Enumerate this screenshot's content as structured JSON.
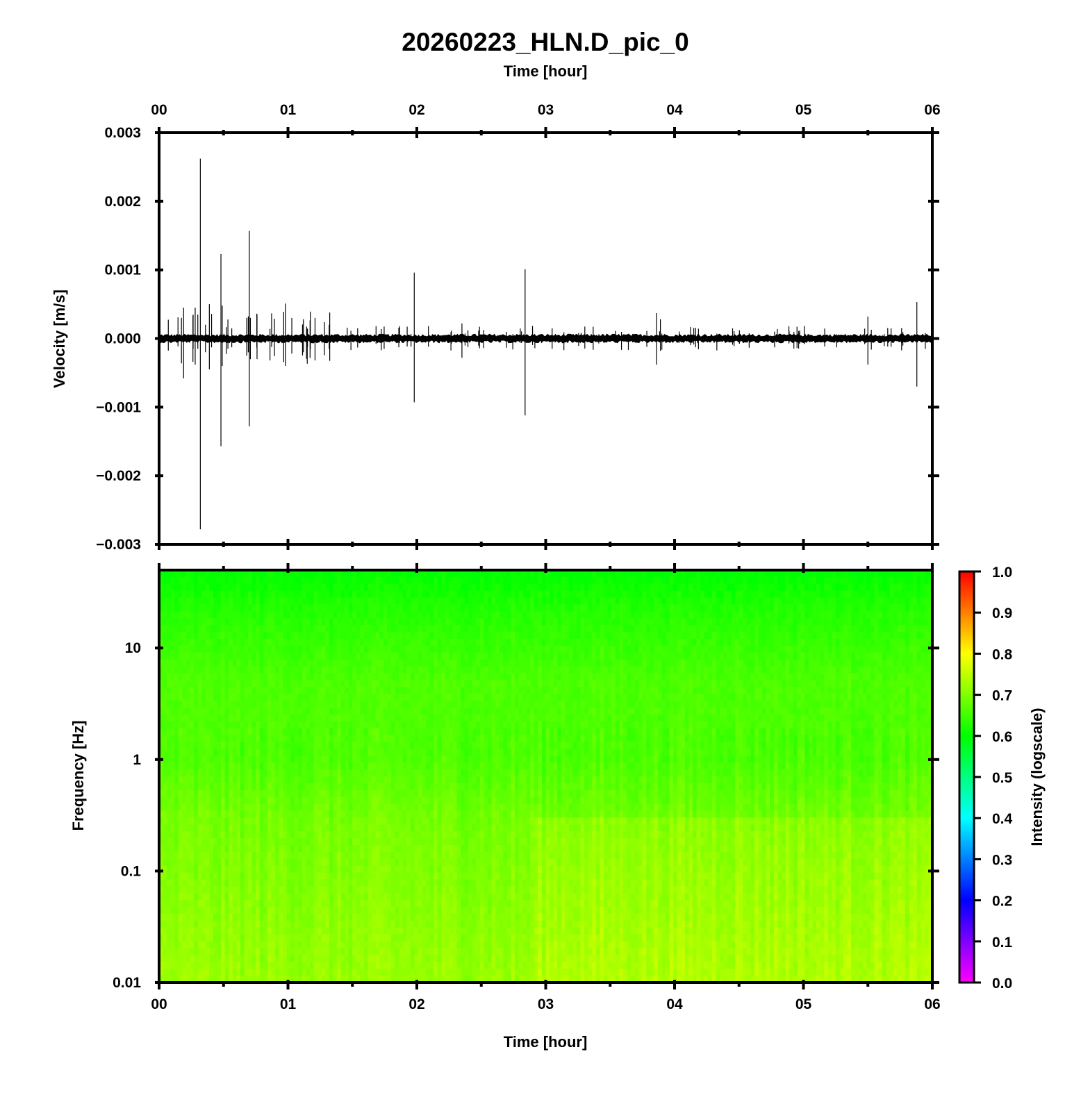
{
  "title": "20260223_HLN.D_pic_0",
  "chart_data": [
    {
      "type": "line",
      "name_panel": "waveform",
      "xlabel": "Time [hour]",
      "ylabel": "Velocity [m/s]",
      "xlim": [
        0,
        6
      ],
      "ylim": [
        -0.003,
        0.003
      ],
      "x_ticks": [
        "00",
        "01",
        "02",
        "03",
        "04",
        "05",
        "06"
      ],
      "y_ticks": [
        "0.003",
        "0.002",
        "0.001",
        "0.000",
        "−0.001",
        "−0.002",
        "−0.003"
      ],
      "noise_amplitude": 5e-05,
      "spikes": [
        {
          "t": 0.19,
          "hi": 0.00045,
          "lo": -0.00058
        },
        {
          "t": 0.28,
          "hi": 0.00045,
          "lo": -0.00038
        },
        {
          "t": 0.32,
          "hi": 0.00262,
          "lo": -0.00278
        },
        {
          "t": 0.36,
          "hi": 0.0002,
          "lo": -0.0002
        },
        {
          "t": 0.39,
          "hi": 0.0005,
          "lo": -0.00045
        },
        {
          "t": 0.48,
          "hi": 0.00123,
          "lo": -0.00157
        },
        {
          "t": 0.49,
          "hi": 0.00048,
          "lo": -0.0004
        },
        {
          "t": 0.68,
          "hi": 0.0003,
          "lo": -0.00025
        },
        {
          "t": 0.7,
          "hi": 0.00157,
          "lo": -0.00128
        },
        {
          "t": 0.76,
          "hi": 0.00035,
          "lo": -0.0003
        },
        {
          "t": 0.98,
          "hi": 0.00051,
          "lo": -0.0004
        },
        {
          "t": 1.03,
          "hi": 0.0003,
          "lo": -0.00022
        },
        {
          "t": 1.12,
          "hi": 0.00028,
          "lo": -0.0002
        },
        {
          "t": 1.21,
          "hi": 0.0003,
          "lo": -0.00032
        },
        {
          "t": 1.32,
          "hi": 0.0002,
          "lo": -0.00015
        },
        {
          "t": 1.98,
          "hi": 0.00096,
          "lo": -0.00093
        },
        {
          "t": 2.09,
          "hi": 0.00018,
          "lo": -0.00012
        },
        {
          "t": 2.35,
          "hi": 0.00022,
          "lo": -0.00028
        },
        {
          "t": 2.84,
          "hi": 0.00101,
          "lo": -0.00112
        },
        {
          "t": 3.05,
          "hi": 0.00015,
          "lo": -0.00015
        },
        {
          "t": 3.86,
          "hi": 0.00037,
          "lo": -0.00038
        },
        {
          "t": 3.89,
          "hi": 0.00028,
          "lo": -0.00018
        },
        {
          "t": 5.5,
          "hi": 0.00032,
          "lo": -0.00038
        },
        {
          "t": 5.68,
          "hi": 0.00015,
          "lo": -0.00012
        },
        {
          "t": 5.88,
          "hi": 0.00053,
          "lo": -0.0007
        }
      ]
    },
    {
      "type": "heatmap",
      "name_panel": "spectrogram",
      "xlabel": "Time [hour]",
      "ylabel": "Frequency [Hz]",
      "xlim": [
        0,
        6
      ],
      "ylim": [
        0.01,
        50
      ],
      "yscale": "log",
      "x_ticks": [
        "00",
        "01",
        "02",
        "03",
        "04",
        "05",
        "06"
      ],
      "y_ticks": [
        {
          "value": 10,
          "label": "10"
        },
        {
          "value": 1,
          "label": "1"
        },
        {
          "value": 0.1,
          "label": "0.1"
        },
        {
          "value": 0.01,
          "label": "0.01"
        }
      ],
      "intensity_profile": [
        {
          "freq": 50,
          "intensity": 0.6
        },
        {
          "freq": 20,
          "intensity": 0.63
        },
        {
          "freq": 5,
          "intensity": 0.66
        },
        {
          "freq": 1,
          "intensity": 0.66
        },
        {
          "freq": 0.3,
          "intensity": 0.69
        },
        {
          "freq": 0.01,
          "intensity": 0.72
        }
      ],
      "late_increase_from_hour": 2.9,
      "colorbar": {
        "label": "Intensity (logscale)",
        "range": [
          0,
          1
        ],
        "ticks": [
          "1.0",
          "0.9",
          "0.8",
          "0.7",
          "0.6",
          "0.5",
          "0.4",
          "0.3",
          "0.2",
          "0.1",
          "0.0"
        ],
        "stops": [
          "#ff00ff",
          "#0000ff",
          "#00ffff",
          "#00ff00",
          "#ffff00",
          "#ff0000"
        ]
      }
    }
  ]
}
